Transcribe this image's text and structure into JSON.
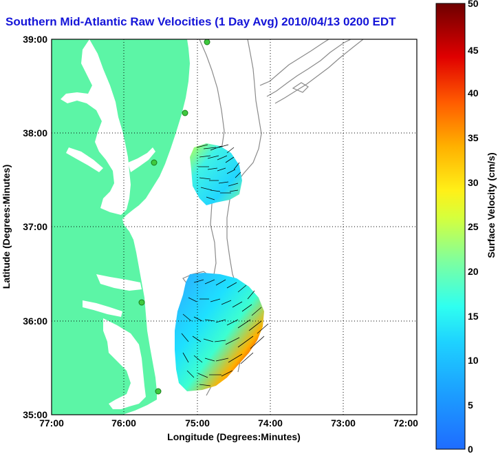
{
  "title": "Southern Mid-Atlantic Raw Velocities (1 Day Avg) 2010/04/13 0200 EDT",
  "x_axis": {
    "label": "Longitude (Degrees:Minutes)",
    "ticks": [
      "77:00",
      "76:00",
      "75:00",
      "74:00",
      "73:00",
      "72:00"
    ]
  },
  "y_axis": {
    "label": "Latitude (Degrees:Minutes)",
    "ticks": [
      "39:00",
      "38:00",
      "37:00",
      "36:00",
      "35:00"
    ]
  },
  "colorbar": {
    "label": "Surface Velocity (cm/s)",
    "ticks": [
      "50",
      "45",
      "40",
      "35",
      "30",
      "25",
      "20",
      "15",
      "10",
      "5",
      "0"
    ]
  },
  "colors": {
    "land": "#5cf5a6",
    "title": "#1414d8",
    "station": "#3ec93e",
    "bathymetry": "#8a8a8a"
  }
}
